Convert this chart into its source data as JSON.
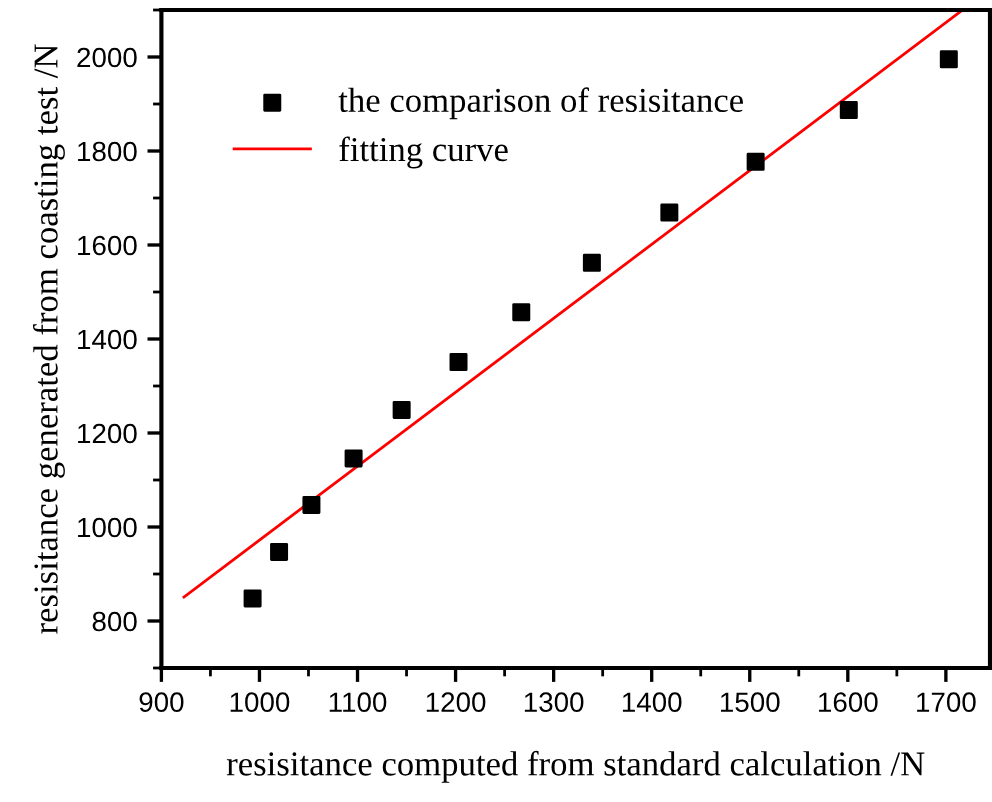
{
  "chart_data": {
    "type": "scatter",
    "xlabel": "resisitance computed from standard calculation /N",
    "ylabel": "resisitance generated from coasting test /N",
    "series": [
      {
        "name": "the comparison of resisitance",
        "color": "#000000",
        "marker": "square",
        "x": [
          993,
          1020,
          1053,
          1096,
          1145,
          1203,
          1267,
          1339,
          1418,
          1506,
          1601,
          1703
        ],
        "values": [
          848,
          947,
          1047,
          1146,
          1249,
          1351,
          1457,
          1562,
          1669,
          1777,
          1887,
          1995
        ]
      },
      {
        "name": "fitting curve",
        "type": "line",
        "color": "#ff0000",
        "line_style": "solid",
        "marker": "none",
        "x": [
          923,
          1717
        ],
        "values": [
          851,
          2100
        ]
      }
    ],
    "xlim": [
      900,
      1745
    ],
    "ylim": [
      700,
      2100
    ],
    "xticks": [
      900,
      1000,
      1100,
      1200,
      1300,
      1400,
      1500,
      1600,
      1700
    ],
    "yticks": [
      800,
      1000,
      1200,
      1400,
      1600,
      1800,
      2000
    ],
    "grid": false,
    "legend": "top left"
  }
}
